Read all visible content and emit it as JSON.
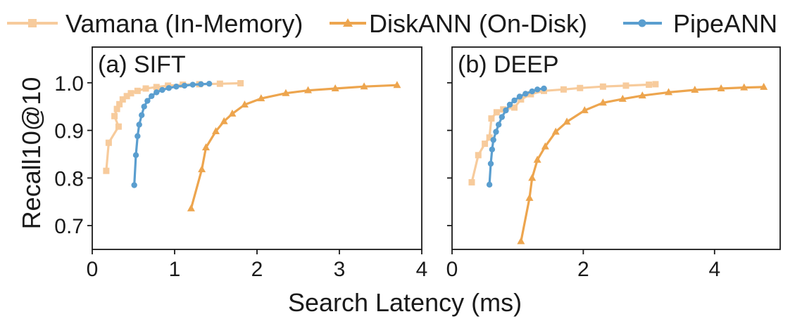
{
  "colors": {
    "vamana": "#f7cb9c",
    "diskann": "#eda54e",
    "pipeann": "#5a9ecf"
  },
  "legend": {
    "vamana": "Vamana (In-Memory)",
    "diskann": "DiskANN (On-Disk)",
    "pipeann": "PipeANN"
  },
  "shared_xlabel": "Search Latency (ms)",
  "chart_data": [
    {
      "type": "line",
      "title": "(a) SIFT",
      "xlabel": "Search Latency (ms)",
      "ylabel": "Recall10@10",
      "xlim": [
        0,
        4
      ],
      "ylim": [
        0.65,
        1.075
      ],
      "xticks": [
        0,
        1,
        2,
        3,
        4
      ],
      "xtick_labels": [
        "0",
        "1",
        "2",
        "3",
        "4"
      ],
      "yticks": [
        0.7,
        0.8,
        0.9,
        1.0
      ],
      "ytick_labels": [
        "0.7",
        "0.8",
        "0.9",
        "1.0"
      ],
      "grid": false,
      "series": [
        {
          "name": "Vamana (In-Memory)",
          "key": "vamana",
          "marker": "square",
          "points": [
            [
              0.17,
              0.815
            ],
            [
              0.2,
              0.874
            ],
            [
              0.32,
              0.908
            ],
            [
              0.27,
              0.93
            ],
            [
              0.3,
              0.945
            ],
            [
              0.33,
              0.955
            ],
            [
              0.37,
              0.965
            ],
            [
              0.42,
              0.972
            ],
            [
              0.47,
              0.978
            ],
            [
              0.55,
              0.983
            ],
            [
              0.65,
              0.988
            ],
            [
              0.78,
              0.991
            ],
            [
              0.92,
              0.994
            ],
            [
              1.1,
              0.996
            ],
            [
              1.3,
              0.997
            ],
            [
              1.55,
              0.998
            ],
            [
              1.8,
              0.999
            ]
          ]
        },
        {
          "name": "DiskANN (On-Disk)",
          "key": "diskann",
          "marker": "triangle",
          "points": [
            [
              1.2,
              0.736
            ],
            [
              1.33,
              0.818
            ],
            [
              1.38,
              0.864
            ],
            [
              1.5,
              0.898
            ],
            [
              1.6,
              0.919
            ],
            [
              1.7,
              0.935
            ],
            [
              1.85,
              0.954
            ],
            [
              2.05,
              0.967
            ],
            [
              2.35,
              0.978
            ],
            [
              2.62,
              0.984
            ],
            [
              2.95,
              0.988
            ],
            [
              3.3,
              0.992
            ],
            [
              3.7,
              0.995
            ]
          ]
        },
        {
          "name": "PipeANN",
          "key": "pipeann",
          "marker": "circle",
          "points": [
            [
              0.51,
              0.785
            ],
            [
              0.53,
              0.848
            ],
            [
              0.55,
              0.888
            ],
            [
              0.57,
              0.912
            ],
            [
              0.6,
              0.932
            ],
            [
              0.63,
              0.95
            ],
            [
              0.67,
              0.962
            ],
            [
              0.72,
              0.972
            ],
            [
              0.78,
              0.98
            ],
            [
              0.85,
              0.985
            ],
            [
              0.93,
              0.989
            ],
            [
              1.02,
              0.992
            ],
            [
              1.12,
              0.994
            ],
            [
              1.22,
              0.996
            ],
            [
              1.32,
              0.997
            ],
            [
              1.42,
              0.998
            ]
          ]
        }
      ]
    },
    {
      "type": "line",
      "title": "(b) DEEP",
      "xlabel": "Search Latency (ms)",
      "ylabel": "",
      "xlim": [
        0,
        5
      ],
      "ylim": [
        0.65,
        1.075
      ],
      "xticks": [
        0,
        2,
        4
      ],
      "xtick_labels": [
        "0",
        "2",
        "4"
      ],
      "yticks": [
        0.7,
        0.8,
        0.9,
        1.0
      ],
      "ytick_labels": [
        "",
        "",
        "",
        ""
      ],
      "grid": false,
      "series": [
        {
          "name": "Vamana (In-Memory)",
          "key": "vamana",
          "marker": "square",
          "points": [
            [
              0.3,
              0.791
            ],
            [
              0.4,
              0.848
            ],
            [
              0.5,
              0.872
            ],
            [
              0.57,
              0.885
            ],
            [
              0.6,
              0.925
            ],
            [
              0.68,
              0.938
            ],
            [
              0.78,
              0.944
            ],
            [
              0.95,
              0.948
            ],
            [
              1.05,
              0.965
            ],
            [
              1.2,
              0.976
            ],
            [
              1.4,
              0.983
            ],
            [
              1.7,
              0.986
            ],
            [
              1.95,
              0.989
            ],
            [
              2.3,
              0.992
            ],
            [
              2.65,
              0.994
            ],
            [
              3.0,
              0.996
            ],
            [
              3.1,
              0.997
            ]
          ]
        },
        {
          "name": "DiskANN (On-Disk)",
          "key": "diskann",
          "marker": "triangle",
          "points": [
            [
              1.05,
              0.667
            ],
            [
              1.18,
              0.758
            ],
            [
              1.22,
              0.8
            ],
            [
              1.3,
              0.838
            ],
            [
              1.42,
              0.866
            ],
            [
              1.58,
              0.897
            ],
            [
              1.75,
              0.918
            ],
            [
              2.02,
              0.942
            ],
            [
              2.3,
              0.958
            ],
            [
              2.6,
              0.966
            ],
            [
              2.9,
              0.973
            ],
            [
              3.3,
              0.98
            ],
            [
              3.7,
              0.985
            ],
            [
              4.1,
              0.988
            ],
            [
              4.45,
              0.99
            ],
            [
              4.75,
              0.991
            ]
          ]
        },
        {
          "name": "PipeANN",
          "key": "pipeann",
          "marker": "circle",
          "points": [
            [
              0.57,
              0.786
            ],
            [
              0.59,
              0.83
            ],
            [
              0.61,
              0.86
            ],
            [
              0.63,
              0.88
            ],
            [
              0.67,
              0.897
            ],
            [
              0.71,
              0.912
            ],
            [
              0.76,
              0.928
            ],
            [
              0.82,
              0.942
            ],
            [
              0.88,
              0.954
            ],
            [
              0.95,
              0.963
            ],
            [
              1.03,
              0.971
            ],
            [
              1.12,
              0.977
            ],
            [
              1.22,
              0.982
            ],
            [
              1.3,
              0.986
            ],
            [
              1.4,
              0.988
            ]
          ]
        }
      ]
    }
  ]
}
